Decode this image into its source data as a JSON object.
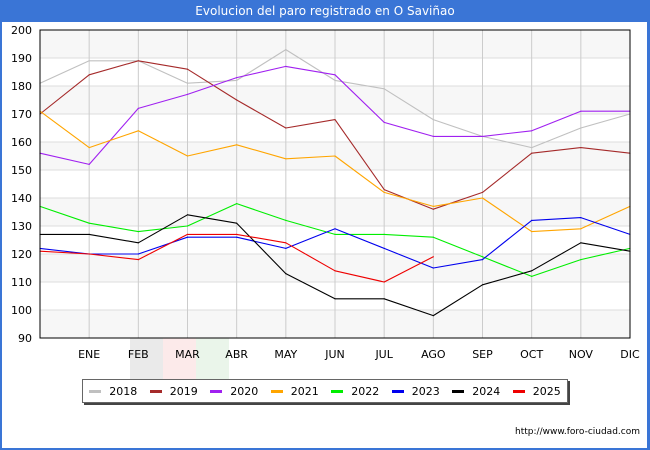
{
  "header": {
    "title": "Evolucion del paro registrado en O Saviñao"
  },
  "footer": {
    "url": "http://www.foro-ciudad.com"
  },
  "chart_data": {
    "type": "line",
    "title": "Evolucion del paro registrado en O Saviñao",
    "xlabel": "",
    "ylabel": "",
    "categories": [
      "",
      "ENE",
      "FEB",
      "MAR",
      "ABR",
      "MAY",
      "JUN",
      "JUL",
      "AGO",
      "SEP",
      "OCT",
      "NOV",
      "DIC"
    ],
    "x_tick_labels": [
      "ENE",
      "FEB",
      "MAR",
      "ABR",
      "MAY",
      "JUN",
      "JUL",
      "AGO",
      "SEP",
      "OCT",
      "NOV",
      "DIC"
    ],
    "y_tick_labels": [
      "90",
      "100",
      "110",
      "120",
      "130",
      "140",
      "150",
      "160",
      "170",
      "180",
      "190",
      "200"
    ],
    "ylim": [
      90,
      200
    ],
    "grid": true,
    "legend_position": "bottom",
    "series": [
      {
        "name": "2018",
        "color": "#c0c0c0",
        "values": [
          181,
          189,
          189,
          181,
          182,
          193,
          182,
          179,
          168,
          162,
          158,
          165,
          170
        ]
      },
      {
        "name": "2019",
        "color": "#a52a2a",
        "values": [
          170,
          184,
          189,
          186,
          175,
          165,
          168,
          143,
          136,
          142,
          156,
          158,
          156
        ]
      },
      {
        "name": "2020",
        "color": "#a020f0",
        "values": [
          156,
          152,
          172,
          177,
          183,
          187,
          184,
          167,
          162,
          162,
          164,
          171,
          171
        ]
      },
      {
        "name": "2021",
        "color": "#ffa500",
        "values": [
          171,
          158,
          164,
          155,
          159,
          154,
          155,
          142,
          137,
          140,
          128,
          129,
          137
        ]
      },
      {
        "name": "2022",
        "color": "#00ee00",
        "values": [
          137,
          131,
          128,
          130,
          138,
          132,
          127,
          127,
          126,
          119,
          112,
          118,
          122
        ]
      },
      {
        "name": "2023",
        "color": "#0000ee",
        "values": [
          122,
          120,
          120,
          126,
          126,
          122,
          129,
          122,
          115,
          118,
          132,
          133,
          127
        ]
      },
      {
        "name": "2024",
        "color": "#000000",
        "values": [
          127,
          127,
          124,
          134,
          131,
          113,
          104,
          104,
          98,
          109,
          114,
          124,
          121
        ]
      },
      {
        "name": "2025",
        "color": "#ee0000",
        "values": [
          121,
          120,
          118,
          127,
          127,
          124,
          114,
          110,
          119,
          null,
          null,
          null,
          null
        ]
      }
    ]
  }
}
